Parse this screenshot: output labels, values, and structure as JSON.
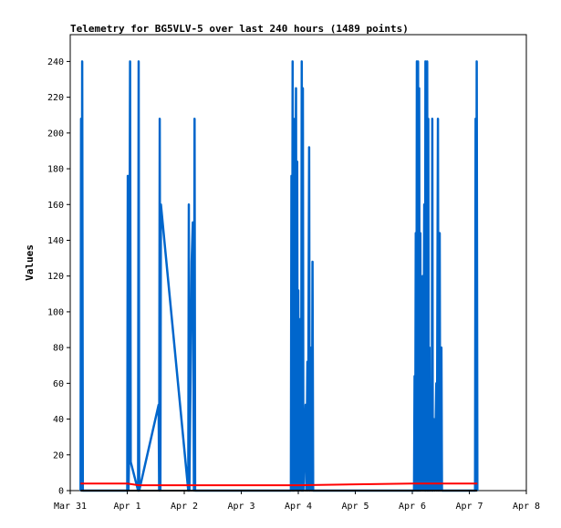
{
  "chart_data": {
    "type": "line",
    "title": "Telemetry for BG5VLV-5 over last 240 hours (1489 points)",
    "xlabel": "",
    "ylabel": "Values",
    "x_axis_type": "date",
    "xlim": [
      "Mar 31",
      "Apr 8"
    ],
    "ylim": [
      0,
      255
    ],
    "x_tick_labels": [
      "Mar 31",
      "Apr 1",
      "Apr 2",
      "Apr 3",
      "Apr 4",
      "Apr 5",
      "Apr 6",
      "Apr 7",
      "Apr 8"
    ],
    "y_ticks": [
      0,
      20,
      40,
      60,
      80,
      100,
      120,
      140,
      160,
      180,
      200,
      220,
      240
    ],
    "grid": false,
    "legend": "none",
    "series": [
      {
        "color": "#0066cc",
        "points": [
          [
            0.18,
            0
          ],
          [
            0.19,
            208
          ],
          [
            0.2,
            0
          ],
          [
            0.21,
            240
          ],
          [
            0.22,
            0
          ],
          [
            1.0,
            0
          ],
          [
            1.01,
            176
          ],
          [
            1.02,
            0
          ],
          [
            1.03,
            16
          ],
          [
            1.05,
            240
          ],
          [
            1.06,
            16
          ],
          [
            1.19,
            0
          ],
          [
            1.2,
            240
          ],
          [
            1.21,
            0
          ],
          [
            1.55,
            48
          ],
          [
            1.56,
            0
          ],
          [
            1.57,
            208
          ],
          [
            1.58,
            0
          ],
          [
            1.59,
            160
          ],
          [
            2.07,
            0
          ],
          [
            2.08,
            160
          ],
          [
            2.09,
            0
          ],
          [
            2.11,
            64
          ],
          [
            2.13,
            128
          ],
          [
            2.15,
            150
          ],
          [
            2.17,
            0
          ],
          [
            2.18,
            208
          ],
          [
            2.19,
            0
          ],
          [
            3.87,
            0
          ],
          [
            3.88,
            176
          ],
          [
            3.89,
            0
          ],
          [
            3.9,
            240
          ],
          [
            3.91,
            0
          ],
          [
            3.92,
            208
          ],
          [
            3.93,
            0
          ],
          [
            3.96,
            225
          ],
          [
            3.97,
            0
          ],
          [
            3.98,
            184
          ],
          [
            3.99,
            0
          ],
          [
            4.0,
            112
          ],
          [
            4.01,
            0
          ],
          [
            4.04,
            96
          ],
          [
            4.05,
            0
          ],
          [
            4.06,
            240
          ],
          [
            4.07,
            0
          ],
          [
            4.08,
            225
          ],
          [
            4.09,
            0
          ],
          [
            4.13,
            48
          ],
          [
            4.14,
            0
          ],
          [
            4.16,
            72
          ],
          [
            4.17,
            0
          ],
          [
            4.19,
            192
          ],
          [
            4.2,
            0
          ],
          [
            4.23,
            80
          ],
          [
            4.24,
            0
          ],
          [
            4.25,
            128
          ],
          [
            4.26,
            0
          ],
          [
            6.03,
            0
          ],
          [
            6.04,
            64
          ],
          [
            6.05,
            0
          ],
          [
            6.06,
            144
          ],
          [
            6.07,
            0
          ],
          [
            6.08,
            240
          ],
          [
            6.09,
            0
          ],
          [
            6.1,
            240
          ],
          [
            6.11,
            0
          ],
          [
            6.12,
            225
          ],
          [
            6.13,
            0
          ],
          [
            6.14,
            144
          ],
          [
            6.15,
            0
          ],
          [
            6.18,
            120
          ],
          [
            6.19,
            0
          ],
          [
            6.21,
            160
          ],
          [
            6.22,
            0
          ],
          [
            6.23,
            240
          ],
          [
            6.24,
            0
          ],
          [
            6.26,
            240
          ],
          [
            6.27,
            0
          ],
          [
            6.28,
            208
          ],
          [
            6.29,
            0
          ],
          [
            6.3,
            80
          ],
          [
            6.31,
            0
          ],
          [
            6.33,
            48
          ],
          [
            6.34,
            0
          ],
          [
            6.35,
            208
          ],
          [
            6.36,
            0
          ],
          [
            6.38,
            40
          ],
          [
            6.39,
            0
          ],
          [
            6.42,
            60
          ],
          [
            6.43,
            0
          ],
          [
            6.45,
            208
          ],
          [
            6.46,
            0
          ],
          [
            6.48,
            144
          ],
          [
            6.49,
            0
          ],
          [
            6.51,
            80
          ],
          [
            6.52,
            0
          ],
          [
            7.1,
            0
          ],
          [
            7.11,
            208
          ],
          [
            7.12,
            0
          ],
          [
            7.13,
            240
          ],
          [
            7.14,
            0
          ]
        ]
      },
      {
        "color": "#ff0000",
        "points": [
          [
            0.18,
            4
          ],
          [
            1.0,
            4
          ],
          [
            1.2,
            3
          ],
          [
            2.17,
            3
          ],
          [
            4.0,
            3
          ],
          [
            6.0,
            4
          ],
          [
            7.14,
            4
          ]
        ]
      },
      {
        "color": "#000000",
        "points": [
          [
            0.18,
            0
          ],
          [
            7.14,
            0
          ]
        ]
      }
    ]
  }
}
